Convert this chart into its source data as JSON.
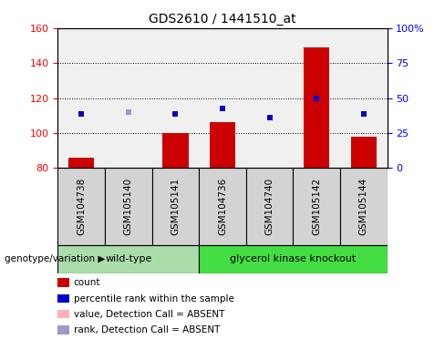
{
  "title": "GDS2610 / 1441510_at",
  "samples": [
    "GSM104738",
    "GSM105140",
    "GSM105141",
    "GSM104736",
    "GSM104740",
    "GSM105142",
    "GSM105144"
  ],
  "count_values": [
    86,
    80,
    100,
    106,
    80,
    149,
    98
  ],
  "rank_values": [
    111,
    112,
    111,
    114,
    109,
    120,
    111
  ],
  "absent_samples": [
    1
  ],
  "wild_type_indices": [
    0,
    1,
    2
  ],
  "knockout_indices": [
    3,
    4,
    5,
    6
  ],
  "wild_type_label": "wild-type",
  "knockout_label": "glycerol kinase knockout",
  "genotype_label": "genotype/variation",
  "ylim_left": [
    80,
    160
  ],
  "ylim_right": [
    0,
    100
  ],
  "yticks_left": [
    80,
    100,
    120,
    140,
    160
  ],
  "yticks_right": [
    0,
    25,
    50,
    75,
    100
  ],
  "ytick_labels_right": [
    "0",
    "25",
    "50",
    "75",
    "100%"
  ],
  "bar_color": "#cc0000",
  "bar_absent_color": "#ffb0b0",
  "rank_color": "#0000cc",
  "rank_absent_color": "#9999cc",
  "wt_bg_color": "#aaddaa",
  "ko_bg_color": "#44dd44",
  "sample_bg_color": "#d3d3d3",
  "plot_bg_color": "#f0f0f0",
  "legend_items": [
    {
      "color": "#cc0000",
      "label": "count"
    },
    {
      "color": "#0000cc",
      "label": "percentile rank within the sample"
    },
    {
      "color": "#ffb0b0",
      "label": "value, Detection Call = ABSENT"
    },
    {
      "color": "#9999cc",
      "label": "rank, Detection Call = ABSENT"
    }
  ]
}
